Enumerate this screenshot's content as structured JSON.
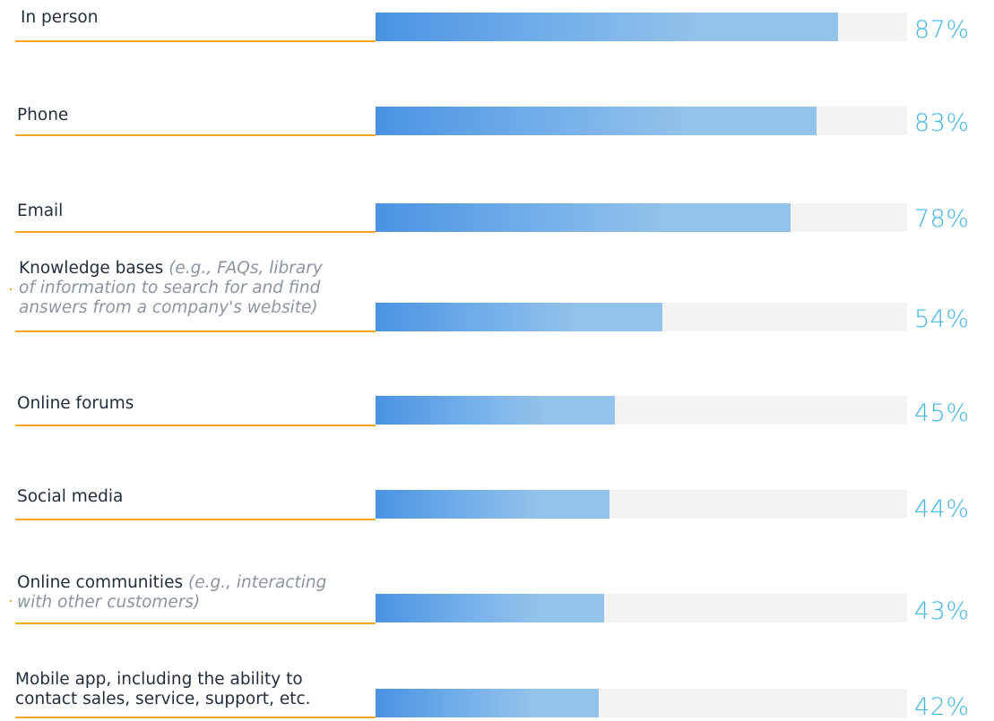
{
  "chart_data": {
    "type": "bar",
    "orientation": "horizontal",
    "ylim": [
      0,
      100
    ],
    "categories": [
      {
        "main": "In person",
        "note": ""
      },
      {
        "main": "Phone",
        "note": ""
      },
      {
        "main": "Email",
        "note": ""
      },
      {
        "main": "Knowledge bases ",
        "note": "(e.g., FAQs, library of information to search for and find answers from a company's website)"
      },
      {
        "main": "Online forums",
        "note": ""
      },
      {
        "main": "Social media",
        "note": ""
      },
      {
        "main": "Online communities ",
        "note": "(e.g., interacting with other customers)"
      },
      {
        "main": "Mobile app, including the ability to contact sales, service, support, etc.",
        "note": ""
      }
    ],
    "values": [
      87,
      83,
      78,
      54,
      45,
      44,
      43,
      42
    ],
    "value_labels": [
      "87%",
      "83%",
      "78%",
      "54%",
      "45%",
      "44%",
      "43%",
      "42%"
    ],
    "colors": {
      "bar_start": "#4a93e3",
      "bar_end": "#93c2ea",
      "track": "#f3f3f3",
      "value_text": "#3fb6e8",
      "underline": "#f5a623",
      "label_text": "#1f2d3d",
      "note_text": "#8a94a3"
    }
  }
}
